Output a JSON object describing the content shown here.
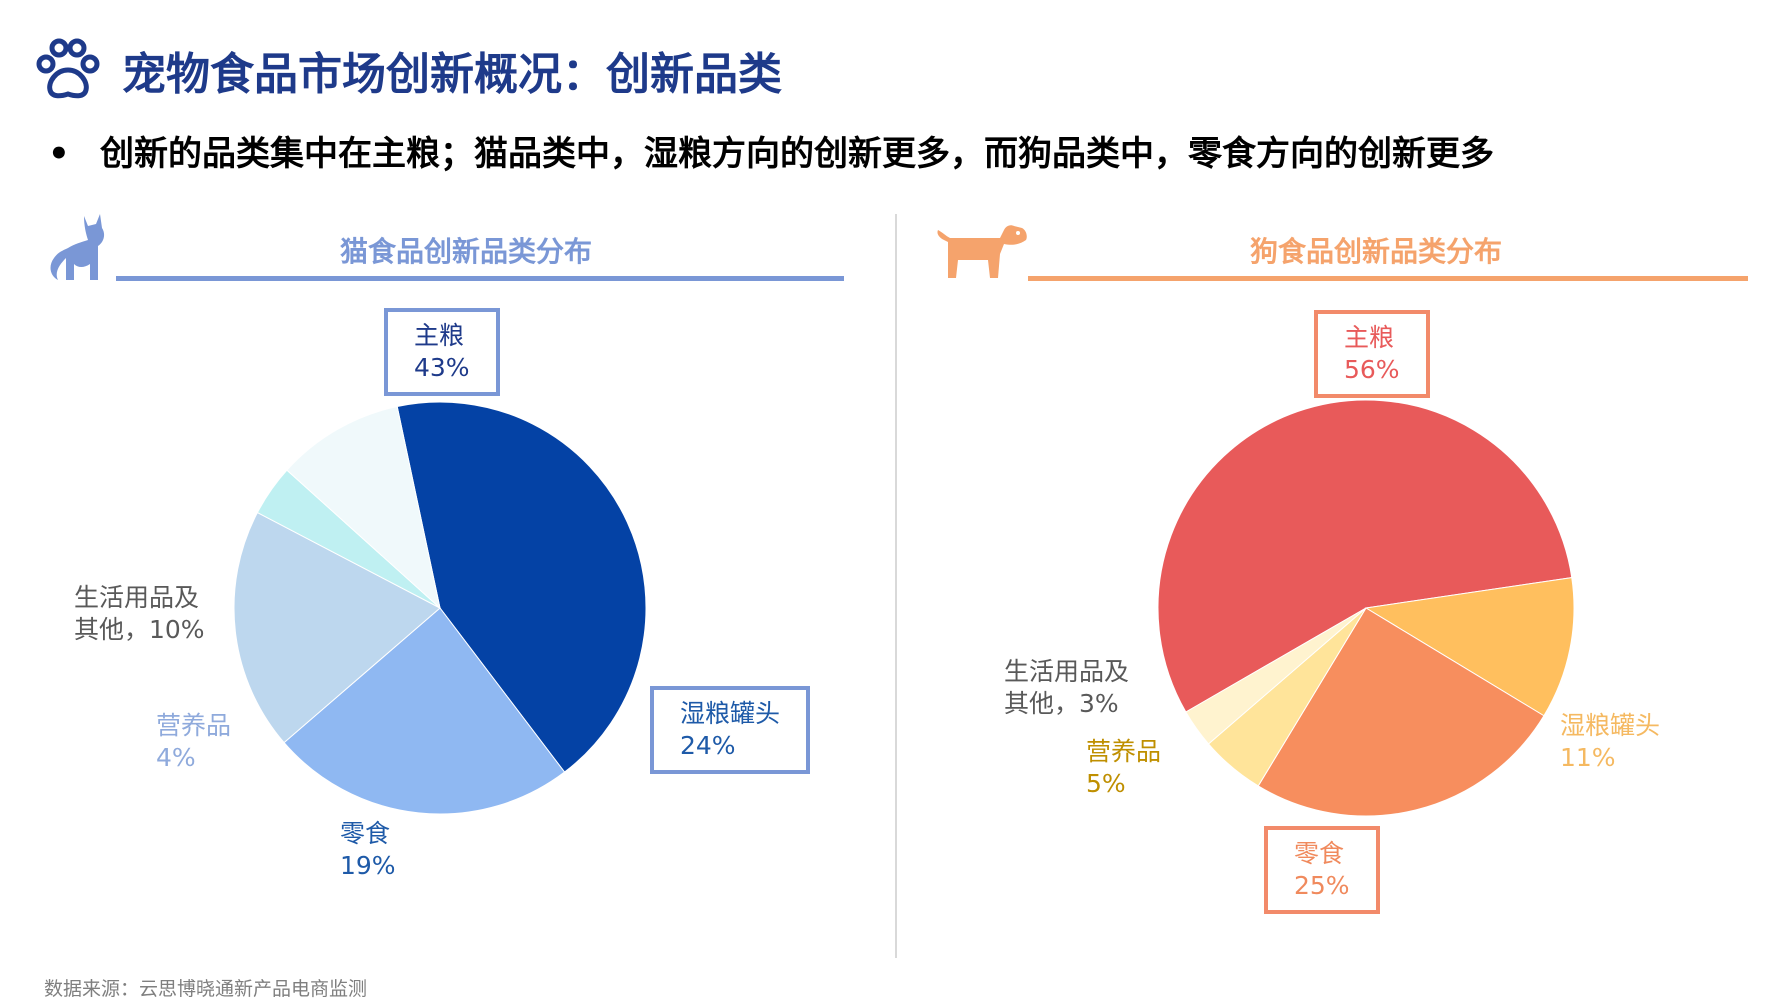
{
  "title": "宠物食品市场创新概况：创新品类",
  "bullet": "创新的品类集中在主粮；猫品类中，湿粮方向的创新更多，而狗品类中，零食方向的创新更多",
  "source": "数据来源：云思博晓通新产品电商监测",
  "icons": {
    "title": "paw-icon",
    "cat": "cat-icon",
    "dog": "dog-icon"
  },
  "colors": {
    "title": "#1e3a8a",
    "cat_accent": "#7a97d6",
    "dog_accent": "#f5a36c"
  },
  "chart_data": [
    {
      "type": "pie",
      "title": "猫食品创新品类分布",
      "slices": [
        {
          "name": "主粮",
          "value": 43,
          "label_value": "43%",
          "color": "#0442a5",
          "label_color": "#1e3a8a",
          "boxed": true
        },
        {
          "name": "湿粮罐头",
          "value": 24,
          "label_value": "24%",
          "color": "#8fb8f2",
          "label_color": "#1e5aa8",
          "boxed": true
        },
        {
          "name": "零食",
          "value": 19,
          "label_value": "19%",
          "color": "#bdd7ee",
          "label_color": "#1e5aa8",
          "boxed": false
        },
        {
          "name": "营养品",
          "value": 4,
          "label_value": "4%",
          "color": "#bff0f2",
          "label_color": "#8faadc",
          "boxed": false
        },
        {
          "name": "生活用品及",
          "name2": "其他，10%",
          "value": 10,
          "color": "#f0f9fb",
          "label_color": "#595959",
          "boxed": false
        }
      ]
    },
    {
      "type": "pie",
      "title": "狗食品创新品类分布",
      "slices": [
        {
          "name": "主粮",
          "value": 56,
          "label_value": "56%",
          "color": "#e85a5a",
          "label_color": "#e85a5a",
          "boxed": true
        },
        {
          "name": "湿粮罐头",
          "value": 11,
          "label_value": "11%",
          "color": "#ffbf5e",
          "label_color": "#f5b961",
          "boxed": false
        },
        {
          "name": "零食",
          "value": 25,
          "label_value": "25%",
          "color": "#f78e5e",
          "label_color": "#f08a5d",
          "boxed": true
        },
        {
          "name": "营养品",
          "value": 5,
          "label_value": "5%",
          "color": "#ffe49a",
          "label_color": "#bf8f00",
          "boxed": false
        },
        {
          "name": "生活用品及",
          "name2": "其他，3%",
          "value": 3,
          "color": "#fff3cf",
          "label_color": "#595959",
          "boxed": false
        }
      ]
    }
  ]
}
